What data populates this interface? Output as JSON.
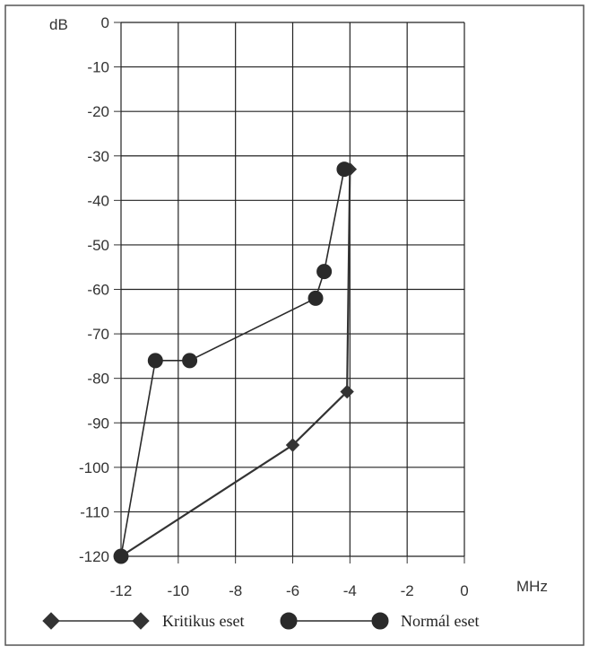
{
  "chart_data": {
    "type": "line",
    "ylabel": "dB",
    "xlabel": "MHz",
    "xlim": [
      -12,
      0
    ],
    "ylim": [
      -120,
      0
    ],
    "x_ticks": [
      -12,
      -10,
      -8,
      -6,
      -4,
      -2,
      0
    ],
    "y_ticks": [
      0,
      -10,
      -20,
      -30,
      -40,
      -50,
      -60,
      -70,
      -80,
      -90,
      -100,
      -110,
      -120
    ],
    "x_tick_labels": [
      "-12",
      "-10",
      "-8",
      "-6",
      "-4",
      "-2",
      "0"
    ],
    "y_tick_labels": [
      "0",
      "-10",
      "-20",
      "-30",
      "-40",
      "-50",
      "-60",
      "-70",
      "-80",
      "-90",
      "-100",
      "-110",
      "-120"
    ],
    "grid": true,
    "legend_position": "bottom",
    "series": [
      {
        "name": "Kritikus eset",
        "marker": "diamond",
        "color": "#333333",
        "points": [
          {
            "x": -12,
            "y": -120
          },
          {
            "x": -6,
            "y": -95
          },
          {
            "x": -4.1,
            "y": -83
          },
          {
            "x": -4,
            "y": -33
          }
        ]
      },
      {
        "name": "Normál eset",
        "marker": "circle",
        "color": "#2a2a2a",
        "points": [
          {
            "x": -12,
            "y": -120
          },
          {
            "x": -10.8,
            "y": -76
          },
          {
            "x": -9.6,
            "y": -76
          },
          {
            "x": -5.2,
            "y": -62
          },
          {
            "x": -4.9,
            "y": -56
          },
          {
            "x": -4.2,
            "y": -33
          }
        ]
      }
    ]
  }
}
